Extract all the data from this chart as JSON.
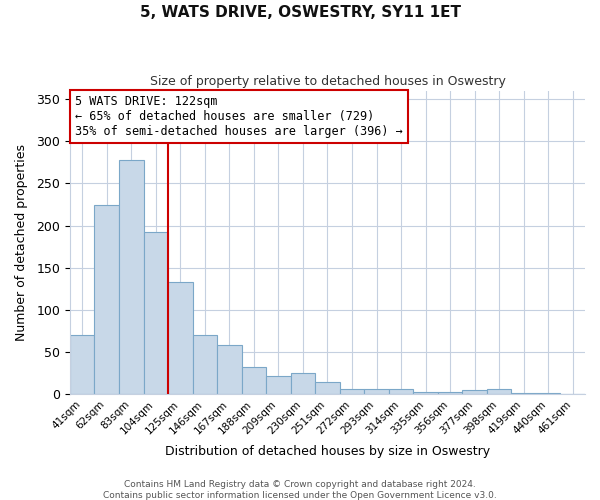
{
  "title": "5, WATS DRIVE, OSWESTRY, SY11 1ET",
  "subtitle": "Size of property relative to detached houses in Oswestry",
  "xlabel": "Distribution of detached houses by size in Oswestry",
  "ylabel": "Number of detached properties",
  "bar_labels": [
    "41sqm",
    "62sqm",
    "83sqm",
    "104sqm",
    "125sqm",
    "146sqm",
    "167sqm",
    "188sqm",
    "209sqm",
    "230sqm",
    "251sqm",
    "272sqm",
    "293sqm",
    "314sqm",
    "335sqm",
    "356sqm",
    "377sqm",
    "398sqm",
    "419sqm",
    "440sqm",
    "461sqm"
  ],
  "bar_values": [
    70,
    224,
    278,
    193,
    133,
    71,
    58,
    33,
    22,
    25,
    15,
    6,
    7,
    7,
    3,
    3,
    5,
    6,
    2,
    2,
    1
  ],
  "bar_color": "#c8d8e8",
  "bar_edgecolor": "#7ba7c8",
  "vline_x": 3.5,
  "vline_color": "#cc0000",
  "annotation_title": "5 WATS DRIVE: 122sqm",
  "annotation_line1": "← 65% of detached houses are smaller (729)",
  "annotation_line2": "35% of semi-detached houses are larger (396) →",
  "annotation_box_edgecolor": "#cc0000",
  "ylim": [
    0,
    360
  ],
  "yticks": [
    0,
    50,
    100,
    150,
    200,
    250,
    300,
    350
  ],
  "footer1": "Contains HM Land Registry data © Crown copyright and database right 2024.",
  "footer2": "Contains public sector information licensed under the Open Government Licence v3.0.",
  "background_color": "#ffffff",
  "grid_color": "#c5d0e0"
}
